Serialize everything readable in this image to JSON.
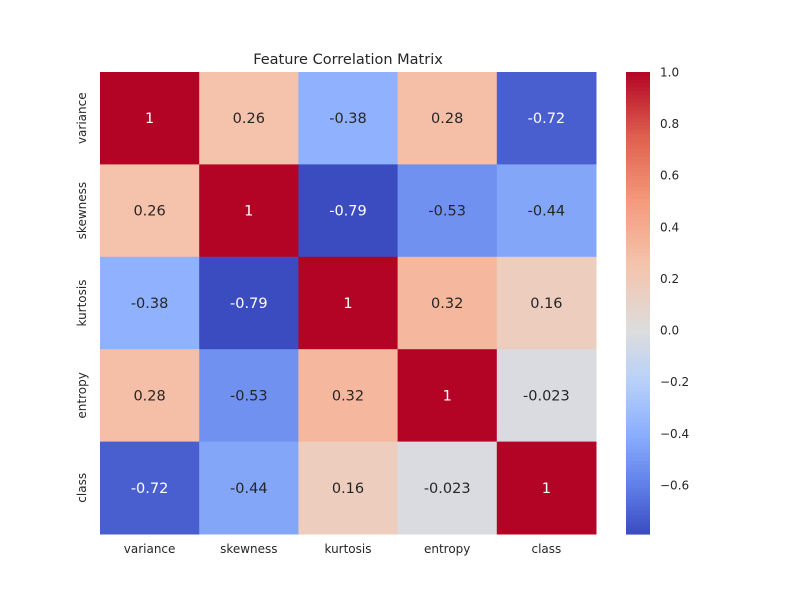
{
  "chart_data": {
    "type": "heatmap",
    "title": "Feature Correlation Matrix",
    "x_categories": [
      "variance",
      "skewness",
      "kurtosis",
      "entropy",
      "class"
    ],
    "y_categories": [
      "variance",
      "skewness",
      "kurtosis",
      "entropy",
      "class"
    ],
    "values": [
      [
        1,
        0.26,
        -0.38,
        0.28,
        -0.72
      ],
      [
        0.26,
        1,
        -0.79,
        -0.53,
        -0.44
      ],
      [
        -0.38,
        -0.79,
        1,
        0.32,
        0.16
      ],
      [
        0.28,
        -0.53,
        0.32,
        1,
        -0.023
      ],
      [
        -0.72,
        -0.44,
        0.16,
        -0.023,
        1
      ]
    ],
    "annotations": [
      [
        "1",
        "0.26",
        "-0.38",
        "0.28",
        "-0.72"
      ],
      [
        "0.26",
        "1",
        "-0.79",
        "-0.53",
        "-0.44"
      ],
      [
        "-0.38",
        "-0.79",
        "1",
        "0.32",
        "0.16"
      ],
      [
        "0.28",
        "-0.53",
        "0.32",
        "1",
        "-0.023"
      ],
      [
        "-0.72",
        "-0.44",
        "0.16",
        "-0.023",
        "1"
      ]
    ],
    "colormap": "coolwarm",
    "color_range": [
      -0.79,
      1.0
    ],
    "colorbar_ticks": [
      "1.0",
      "0.8",
      "0.6",
      "0.4",
      "0.2",
      "0.0",
      "−0.2",
      "−0.4",
      "−0.6"
    ],
    "colorbar_tick_values": [
      1.0,
      0.8,
      0.6,
      0.4,
      0.2,
      0.0,
      -0.2,
      -0.4,
      -0.6
    ],
    "grid": false,
    "legend": "colorbar-right"
  }
}
